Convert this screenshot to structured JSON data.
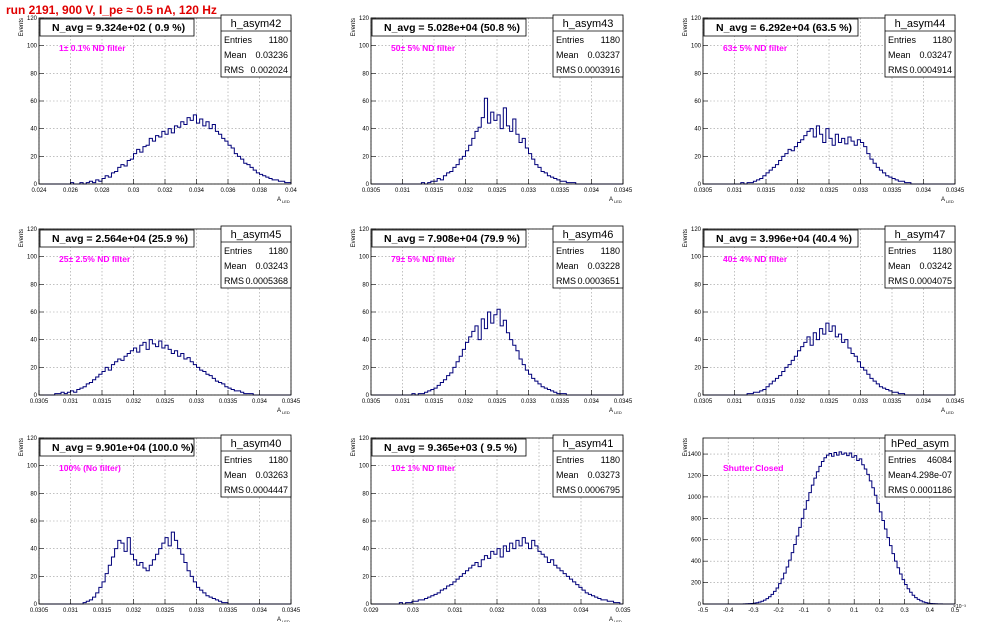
{
  "page": {
    "run_title": "run 2191,   900 V, I_pe ≈ 0.5 nA, 120 Hz"
  },
  "colors": {
    "histogram": "#00007a",
    "frame": "#000000",
    "grid": "#9a9a9a",
    "title": "#e00000",
    "label": "#ff00ff"
  },
  "chart_data": [
    {
      "type": "histogram",
      "name": "h_asym42",
      "title": "N_avg = 9.324e+02 ( 0.9 %)",
      "label": "1± 0.1% ND filter",
      "ylabel": "Events",
      "xlabel": "A",
      "xlabel_sub": "LED",
      "xlim": [
        0.024,
        0.04
      ],
      "ylim": [
        0,
        120
      ],
      "xticks": [
        "0.024",
        "0.026",
        "0.028",
        "0.03",
        "0.032",
        "0.034",
        "0.036",
        "0.038",
        "0.04"
      ],
      "yticks": [
        "0",
        "20",
        "40",
        "60",
        "80",
        "100",
        "120"
      ],
      "stats": {
        "entries": "1180",
        "mean": "0.03236",
        "rms": "0.002024"
      },
      "stat_labels": [
        "Entries",
        "Mean",
        "RMS"
      ],
      "values": [
        0,
        0,
        0,
        0,
        0,
        0,
        0,
        0,
        0,
        0,
        1,
        0,
        0,
        1,
        0,
        1,
        2,
        1,
        3,
        2,
        4,
        6,
        5,
        8,
        9,
        12,
        14,
        13,
        17,
        18,
        22,
        25,
        23,
        27,
        28,
        33,
        31,
        35,
        34,
        38,
        36,
        40,
        37,
        42,
        41,
        45,
        43,
        48,
        46,
        50,
        44,
        47,
        42,
        45,
        40,
        43,
        38,
        36,
        33,
        31,
        28,
        26,
        22,
        20,
        18,
        15,
        14,
        12,
        10,
        8,
        7,
        6,
        5,
        4,
        3,
        3,
        2,
        2,
        1,
        1
      ]
    },
    {
      "type": "histogram",
      "name": "h_asym43",
      "title": "N_avg = 5.028e+04 (50.8 %)",
      "label": "50± 5% ND filter",
      "ylabel": "Events",
      "xlabel": "A",
      "xlabel_sub": "LED",
      "xlim": [
        0.0305,
        0.0345
      ],
      "ylim": [
        0,
        120
      ],
      "xticks": [
        "0.0305",
        "0.031",
        "0.0315",
        "0.032",
        "0.0325",
        "0.033",
        "0.0335",
        "0.034",
        "0.0345"
      ],
      "yticks": [
        "0",
        "20",
        "40",
        "60",
        "80",
        "100",
        "120"
      ],
      "stats": {
        "entries": "1180",
        "mean": "0.03237",
        "rms": "0.0003916"
      },
      "stat_labels": [
        "Entries",
        "Mean",
        "RMS"
      ],
      "values": [
        0,
        0,
        0,
        0,
        0,
        0,
        0,
        0,
        0,
        0,
        0,
        0,
        0,
        0,
        0,
        0,
        1,
        0,
        1,
        2,
        2,
        4,
        3,
        6,
        8,
        9,
        12,
        14,
        18,
        20,
        24,
        28,
        33,
        38,
        41,
        48,
        62,
        44,
        52,
        46,
        50,
        40,
        55,
        42,
        38,
        47,
        36,
        30,
        33,
        26,
        22,
        18,
        14,
        12,
        9,
        8,
        6,
        5,
        4,
        3,
        2,
        2,
        1,
        1,
        1,
        0,
        0,
        0,
        0,
        0,
        0,
        0,
        0,
        0,
        0,
        0,
        0,
        0,
        0,
        0
      ]
    },
    {
      "type": "histogram",
      "name": "h_asym44",
      "title": "N_avg = 6.292e+04 (63.5 %)",
      "label": "63± 5% ND filter",
      "ylabel": "Events",
      "xlabel": "A",
      "xlabel_sub": "LED",
      "xlim": [
        0.0305,
        0.0345
      ],
      "ylim": [
        0,
        120
      ],
      "xticks": [
        "0.0305",
        "0.031",
        "0.0315",
        "0.032",
        "0.0325",
        "0.033",
        "0.0335",
        "0.034",
        "0.0345"
      ],
      "yticks": [
        "0",
        "20",
        "40",
        "60",
        "80",
        "100",
        "120"
      ],
      "stats": {
        "entries": "1180",
        "mean": "0.03247",
        "rms": "0.0004914"
      },
      "stat_labels": [
        "Entries",
        "Mean",
        "RMS"
      ],
      "values": [
        0,
        0,
        0,
        0,
        0,
        0,
        0,
        0,
        0,
        0,
        0,
        0,
        1,
        0,
        1,
        1,
        2,
        3,
        4,
        6,
        8,
        10,
        12,
        14,
        17,
        20,
        22,
        25,
        24,
        27,
        30,
        32,
        35,
        38,
        40,
        34,
        42,
        36,
        30,
        40,
        33,
        28,
        36,
        30,
        33,
        29,
        34,
        31,
        28,
        32,
        30,
        27,
        22,
        18,
        15,
        12,
        10,
        8,
        6,
        5,
        4,
        3,
        2,
        2,
        1,
        1,
        0,
        0,
        0,
        0,
        0,
        0,
        0,
        0,
        0,
        0,
        0,
        0,
        0,
        0
      ]
    },
    {
      "type": "histogram",
      "name": "h_asym45",
      "title": "N_avg = 2.564e+04 (25.9 %)",
      "label": "25± 2.5% ND filter",
      "ylabel": "Events",
      "xlabel": "A",
      "xlabel_sub": "LED",
      "xlim": [
        0.0305,
        0.0345
      ],
      "ylim": [
        0,
        120
      ],
      "xticks": [
        "0.0305",
        "0.031",
        "0.0315",
        "0.032",
        "0.0325",
        "0.033",
        "0.0335",
        "0.034",
        "0.0345"
      ],
      "yticks": [
        "0",
        "20",
        "40",
        "60",
        "80",
        "100",
        "120"
      ],
      "stats": {
        "entries": "1180",
        "mean": "0.03243",
        "rms": "0.0005368"
      },
      "stat_labels": [
        "Entries",
        "Mean",
        "RMS"
      ],
      "values": [
        0,
        0,
        0,
        0,
        0,
        1,
        1,
        2,
        1,
        2,
        3,
        2,
        4,
        5,
        6,
        8,
        9,
        11,
        13,
        15,
        17,
        20,
        18,
        22,
        24,
        26,
        25,
        28,
        30,
        32,
        34,
        31,
        36,
        38,
        33,
        40,
        37,
        35,
        39,
        34,
        36,
        33,
        30,
        32,
        28,
        30,
        26,
        27,
        24,
        22,
        20,
        18,
        17,
        15,
        14,
        12,
        10,
        9,
        8,
        6,
        5,
        4,
        3,
        3,
        2,
        1,
        1,
        1,
        0,
        0,
        0,
        0,
        0,
        0,
        0,
        0,
        0,
        0,
        0,
        0
      ]
    },
    {
      "type": "histogram",
      "name": "h_asym46",
      "title": "N_avg = 7.908e+04 (79.9 %)",
      "label": "79± 5% ND filter",
      "ylabel": "Events",
      "xlabel": "A",
      "xlabel_sub": "LED",
      "xlim": [
        0.0305,
        0.0345
      ],
      "ylim": [
        0,
        120
      ],
      "xticks": [
        "0.0305",
        "0.031",
        "0.0315",
        "0.032",
        "0.0325",
        "0.033",
        "0.0335",
        "0.034",
        "0.0345"
      ],
      "yticks": [
        "0",
        "20",
        "40",
        "60",
        "80",
        "100",
        "120"
      ],
      "stats": {
        "entries": "1180",
        "mean": "0.03228",
        "rms": "0.0003651"
      },
      "stat_labels": [
        "Entries",
        "Mean",
        "RMS"
      ],
      "values": [
        0,
        0,
        0,
        0,
        0,
        0,
        0,
        0,
        0,
        0,
        0,
        0,
        0,
        1,
        0,
        1,
        1,
        2,
        3,
        4,
        5,
        7,
        9,
        11,
        14,
        16,
        20,
        24,
        28,
        33,
        38,
        42,
        46,
        50,
        40,
        55,
        48,
        60,
        52,
        58,
        62,
        50,
        54,
        45,
        40,
        36,
        32,
        26,
        22,
        18,
        15,
        12,
        10,
        8,
        6,
        5,
        4,
        3,
        2,
        1,
        1,
        1,
        0,
        0,
        0,
        0,
        0,
        0,
        0,
        0,
        0,
        0,
        0,
        0,
        0,
        0,
        0,
        0,
        0,
        0
      ]
    },
    {
      "type": "histogram",
      "name": "h_asym47",
      "title": "N_avg = 3.996e+04 (40.4 %)",
      "label": "40± 4% ND filter",
      "ylabel": "Events",
      "xlabel": "A",
      "xlabel_sub": "LED",
      "xlim": [
        0.0305,
        0.0345
      ],
      "ylim": [
        0,
        120
      ],
      "xticks": [
        "0.0305",
        "0.031",
        "0.0315",
        "0.032",
        "0.0325",
        "0.033",
        "0.0335",
        "0.034",
        "0.0345"
      ],
      "yticks": [
        "0",
        "20",
        "40",
        "60",
        "80",
        "100",
        "120"
      ],
      "stats": {
        "entries": "1180",
        "mean": "0.03242",
        "rms": "0.0004075"
      },
      "stat_labels": [
        "Entries",
        "Mean",
        "RMS"
      ],
      "values": [
        0,
        0,
        0,
        0,
        0,
        0,
        0,
        0,
        0,
        0,
        0,
        0,
        0,
        0,
        1,
        1,
        2,
        2,
        3,
        4,
        6,
        8,
        10,
        12,
        14,
        17,
        20,
        22,
        25,
        28,
        32,
        35,
        38,
        42,
        36,
        45,
        40,
        48,
        44,
        52,
        46,
        50,
        42,
        44,
        38,
        40,
        34,
        30,
        28,
        24,
        20,
        18,
        15,
        12,
        10,
        8,
        6,
        5,
        4,
        3,
        2,
        2,
        1,
        1,
        0,
        0,
        0,
        0,
        0,
        0,
        0,
        0,
        0,
        0,
        0,
        0,
        0,
        0,
        0,
        0
      ]
    },
    {
      "type": "histogram",
      "name": "h_asym40",
      "title": "N_avg = 9.901e+04 (100.0 %)",
      "label": "100% (No filter)",
      "ylabel": "Events",
      "xlabel": "A",
      "xlabel_sub": "LED",
      "xlim": [
        0.0305,
        0.0345
      ],
      "ylim": [
        0,
        120
      ],
      "xticks": [
        "0.0305",
        "0.031",
        "0.0315",
        "0.032",
        "0.0325",
        "0.033",
        "0.0335",
        "0.034",
        "0.0345"
      ],
      "yticks": [
        "0",
        "20",
        "40",
        "60",
        "80",
        "100",
        "120"
      ],
      "stats": {
        "entries": "1180",
        "mean": "0.03263",
        "rms": "0.0004447"
      },
      "stat_labels": [
        "Entries",
        "Mean",
        "RMS"
      ],
      "values": [
        0,
        0,
        0,
        0,
        0,
        0,
        0,
        0,
        0,
        0,
        0,
        0,
        0,
        0,
        1,
        2,
        3,
        5,
        8,
        12,
        16,
        22,
        28,
        34,
        40,
        46,
        44,
        38,
        48,
        36,
        32,
        28,
        30,
        26,
        24,
        28,
        32,
        36,
        40,
        44,
        48,
        42,
        52,
        46,
        40,
        36,
        30,
        24,
        20,
        16,
        12,
        10,
        8,
        6,
        5,
        4,
        3,
        2,
        1,
        1,
        0,
        0,
        0,
        0,
        0,
        0,
        0,
        0,
        0,
        0,
        0,
        0,
        0,
        0,
        0,
        0,
        0,
        0,
        0,
        0
      ]
    },
    {
      "type": "histogram",
      "name": "h_asym41",
      "title": "N_avg = 9.365e+03 ( 9.5 %)",
      "label": "10± 1% ND filter",
      "ylabel": "Events",
      "xlabel": "A",
      "xlabel_sub": "LED",
      "xlim": [
        0.029,
        0.035
      ],
      "ylim": [
        0,
        120
      ],
      "xticks": [
        "0.029",
        "0.03",
        "0.031",
        "0.032",
        "0.033",
        "0.034",
        "0.035"
      ],
      "yticks": [
        "0",
        "20",
        "40",
        "60",
        "80",
        "100",
        "120"
      ],
      "stats": {
        "entries": "1180",
        "mean": "0.03273",
        "rms": "0.0006795"
      },
      "stat_labels": [
        "Entries",
        "Mean",
        "RMS"
      ],
      "values": [
        0,
        0,
        0,
        0,
        0,
        0,
        0,
        0,
        0,
        1,
        0,
        1,
        1,
        2,
        2,
        3,
        3,
        4,
        5,
        6,
        7,
        8,
        10,
        11,
        13,
        14,
        16,
        18,
        20,
        22,
        24,
        26,
        28,
        30,
        27,
        32,
        35,
        33,
        38,
        36,
        40,
        34,
        42,
        38,
        44,
        40,
        46,
        42,
        48,
        44,
        40,
        46,
        42,
        38,
        36,
        34,
        30,
        32,
        28,
        26,
        24,
        22,
        20,
        18,
        16,
        14,
        12,
        10,
        8,
        7,
        6,
        5,
        4,
        3,
        3,
        2,
        2,
        1,
        1,
        0
      ]
    },
    {
      "type": "histogram",
      "name": "hPed_asym",
      "title": "",
      "label": "Shutter Closed",
      "ylabel": "Events",
      "xlabel": "",
      "xlabel_sub": "",
      "exponent": "×10⁻³",
      "xlim": [
        -0.5,
        0.5
      ],
      "ylim": [
        0,
        1550
      ],
      "xticks": [
        "-0.5",
        "-0.4",
        "-0.3",
        "-0.2",
        "-0.1",
        "0",
        "0.1",
        "0.2",
        "0.3",
        "0.4",
        "0.5"
      ],
      "yticks": [
        "0",
        "200",
        "400",
        "600",
        "800",
        "1000",
        "1200",
        "1400"
      ],
      "stats": {
        "entries": "46084",
        "mean": "-4.298e-07",
        "rms": "0.0001186"
      },
      "stat_labels": [
        "Entries",
        "Mean",
        "RMS"
      ],
      "values": [
        0,
        0,
        0,
        0,
        0,
        0,
        0,
        0,
        0,
        0,
        0,
        0,
        0,
        0,
        0,
        0,
        1,
        2,
        3,
        5,
        8,
        12,
        18,
        26,
        36,
        50,
        68,
        90,
        118,
        150,
        190,
        235,
        288,
        345,
        410,
        480,
        555,
        635,
        715,
        800,
        885,
        965,
        1040,
        1110,
        1175,
        1235,
        1285,
        1330,
        1365,
        1390,
        1405,
        1380,
        1415,
        1390,
        1420,
        1398,
        1410,
        1385,
        1410,
        1370,
        1385,
        1340,
        1355,
        1300,
        1260,
        1210,
        1150,
        1085,
        1015,
        940,
        860,
        780,
        700,
        620,
        545,
        470,
        400,
        338,
        280,
        228,
        182,
        142,
        110,
        82,
        60,
        43,
        30,
        20,
        13,
        8,
        5,
        3,
        2,
        1,
        1,
        0,
        0,
        0,
        0,
        0
      ]
    }
  ]
}
